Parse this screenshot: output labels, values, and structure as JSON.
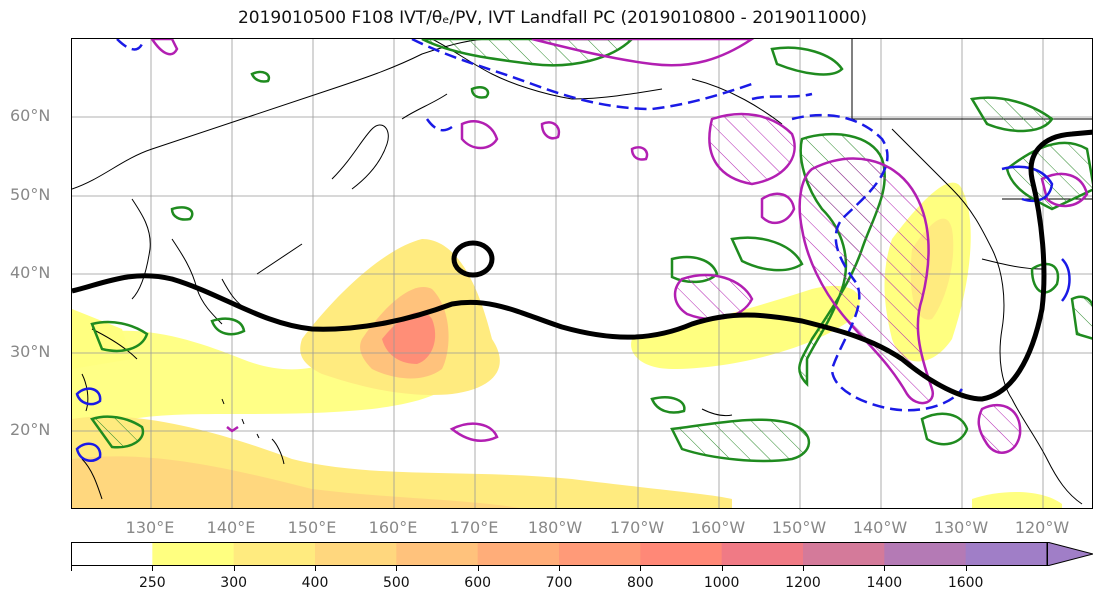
{
  "title": "2019010500 F108 IVT/θₑ/PV, IVT Landfall PC (2019010800 - 2019011000)",
  "map": {
    "latitude_labels": [
      "60°N",
      "50°N",
      "40°N",
      "30°N",
      "20°N"
    ],
    "longitude_labels": [
      "130°E",
      "140°E",
      "150°E",
      "160°E",
      "170°E",
      "180°W",
      "170°W",
      "160°W",
      "150°W",
      "140°W",
      "130°W",
      "120°W"
    ],
    "gridlines": true
  },
  "colorbar": {
    "ticks": [
      "250",
      "300",
      "400",
      "500",
      "600",
      "700",
      "800",
      "1000",
      "1200",
      "1400",
      "1600"
    ],
    "colors": [
      "#ffffff",
      "#ffff80",
      "#ffeb7f",
      "#ffd77e",
      "#ffc27c",
      "#ffad79",
      "#ff9a78",
      "#ff8877",
      "#f07a85",
      "#d47a9a",
      "#b47ab5",
      "#a07ec7"
    ],
    "extend": "max"
  },
  "icons": [
    "coastline",
    "contour-lines",
    "hatching"
  ]
}
